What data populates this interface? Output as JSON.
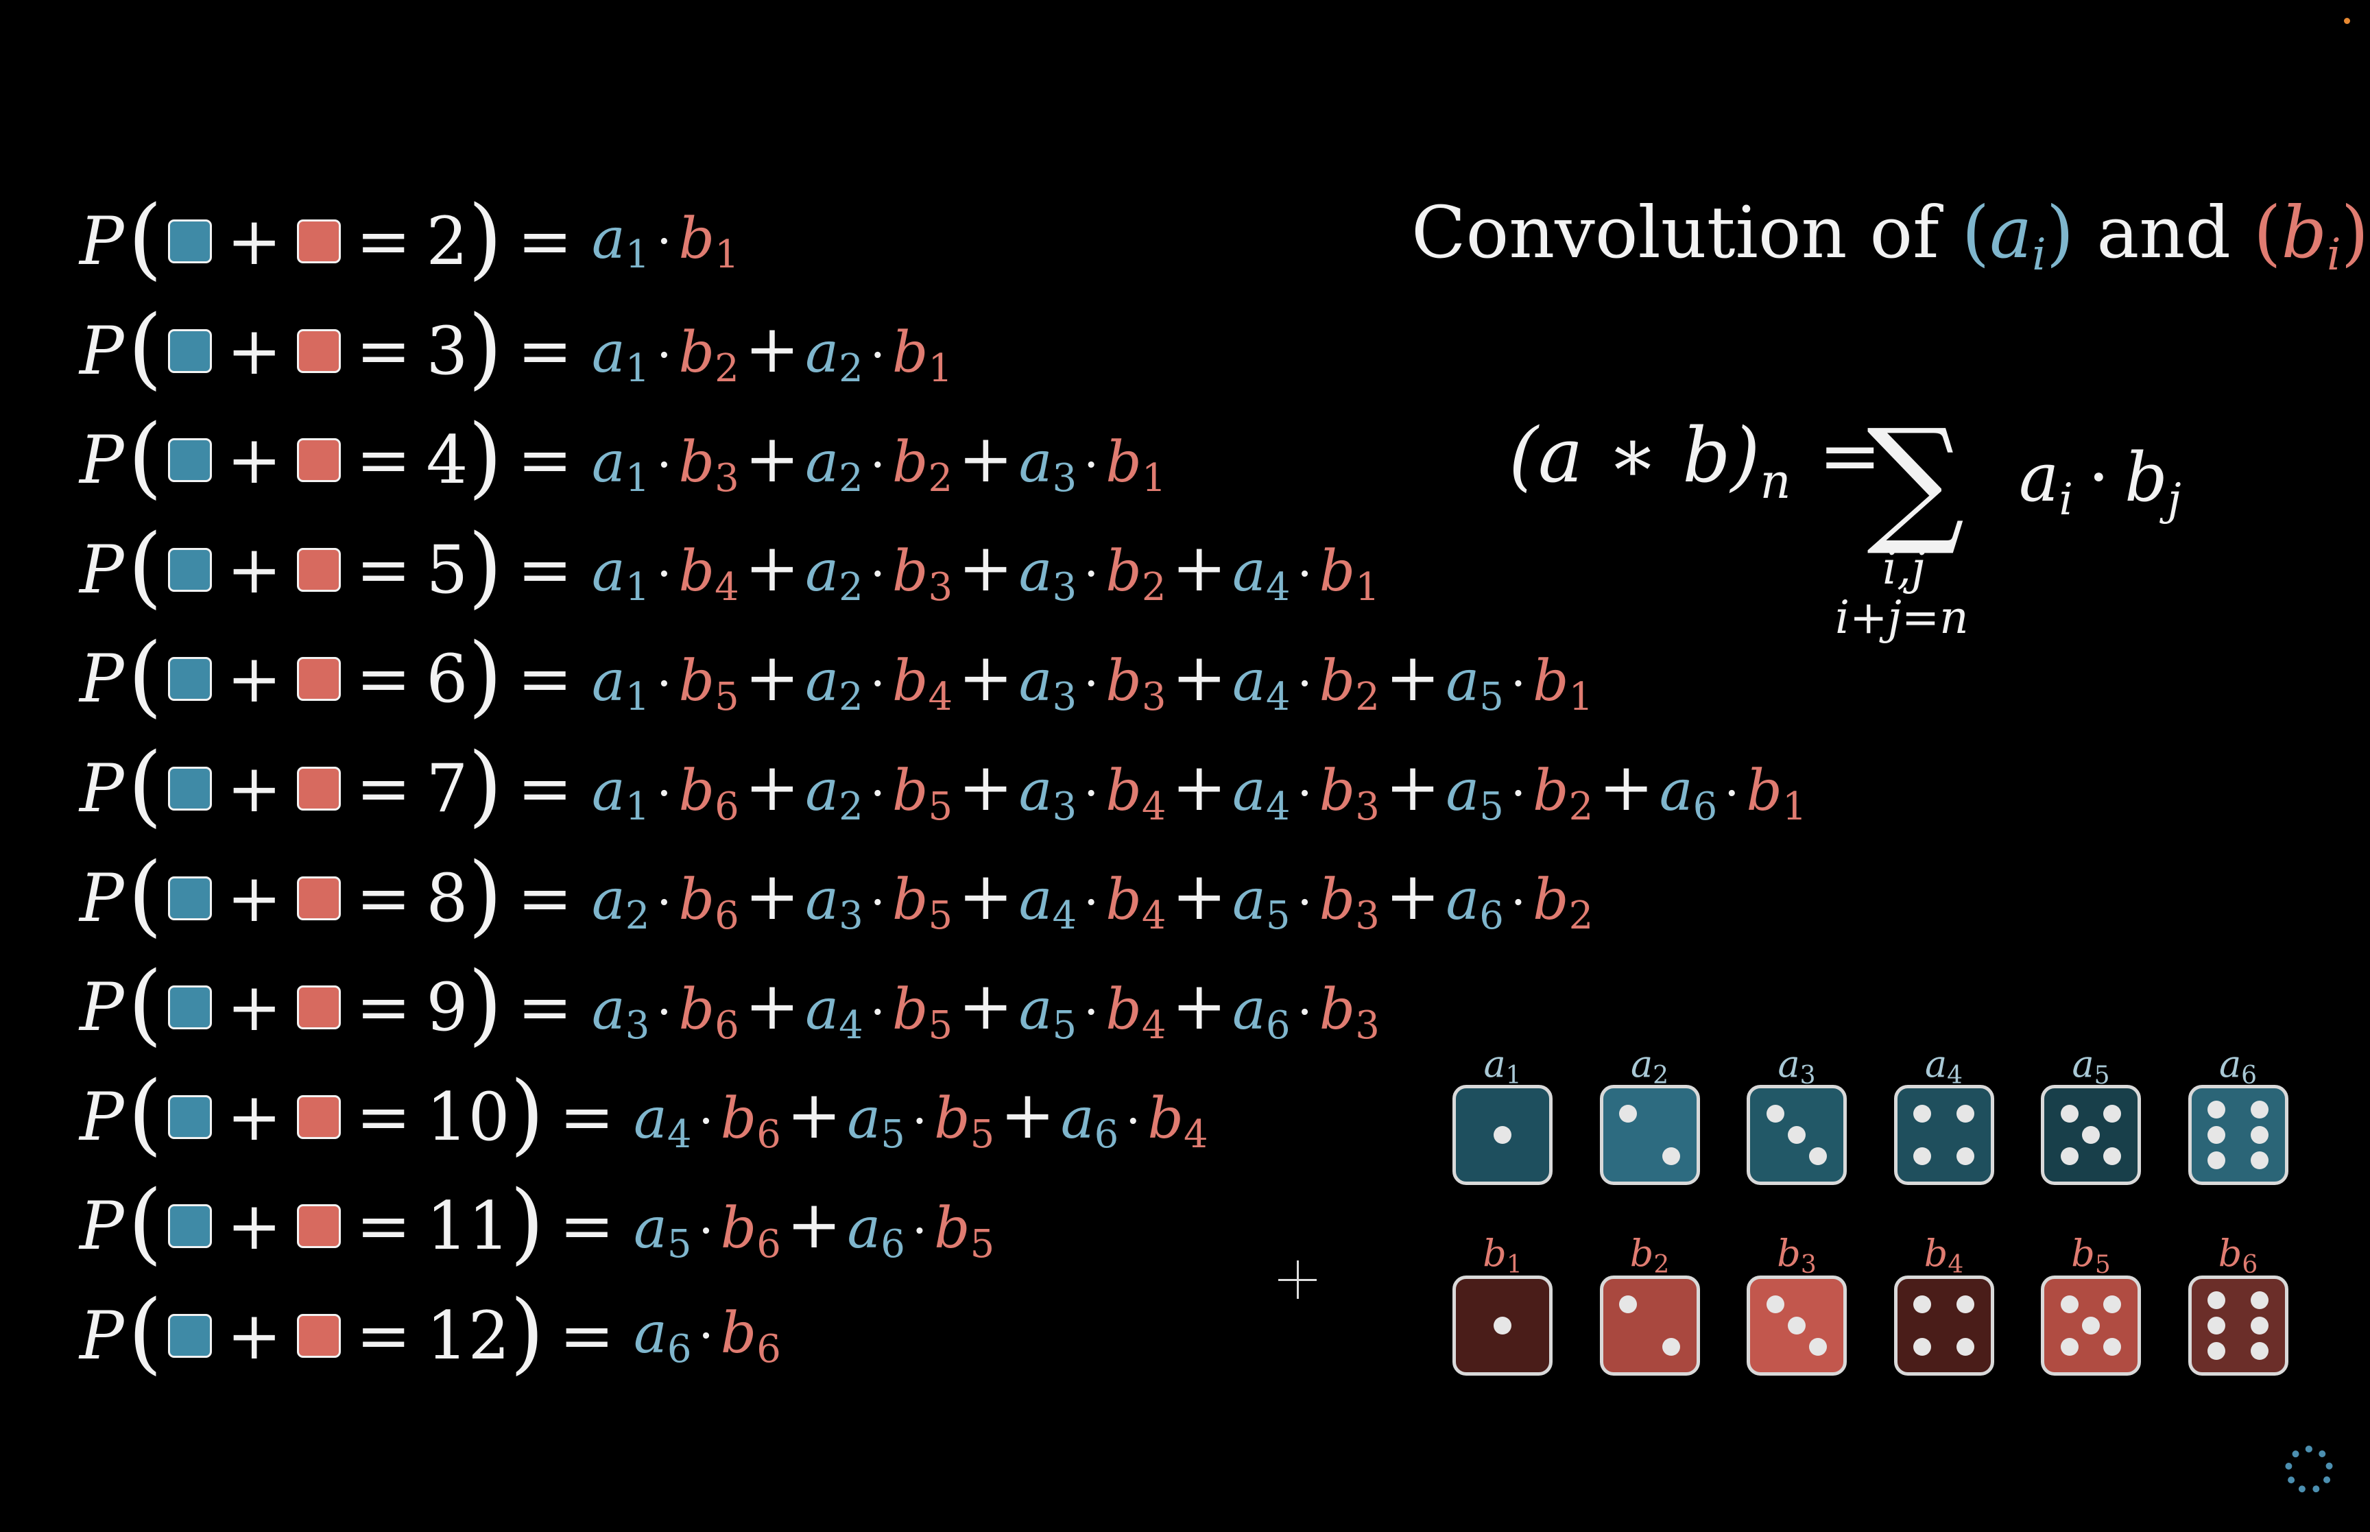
{
  "title": {
    "prefix": "Convolution of ",
    "a_open": "(",
    "a_var": "a",
    "a_sub": "i",
    "a_close": ")",
    "and": " and ",
    "b_open": "(",
    "b_var": "b",
    "b_sub": "i",
    "b_close": ")"
  },
  "formula": {
    "lhs": "(a ∗ b)",
    "lhs_sub": "n",
    "equals": "=",
    "sigma": "∑",
    "sum_index_1": "i,j",
    "sum_index_2": "i+j=n",
    "summand_a": "a",
    "summand_a_sub": "i",
    "summand_dot": "·",
    "summand_b": "b",
    "summand_b_sub": "j"
  },
  "colors": {
    "a": "#7fb6cd",
    "b": "#e07c71",
    "blue_square": "#3f8aa6",
    "red_square": "#d76a5f"
  },
  "equations": [
    {
      "sum": "2",
      "terms": [
        [
          1,
          1
        ]
      ]
    },
    {
      "sum": "3",
      "terms": [
        [
          1,
          2
        ],
        [
          2,
          1
        ]
      ]
    },
    {
      "sum": "4",
      "terms": [
        [
          1,
          3
        ],
        [
          2,
          2
        ],
        [
          3,
          1
        ]
      ]
    },
    {
      "sum": "5",
      "terms": [
        [
          1,
          4
        ],
        [
          2,
          3
        ],
        [
          3,
          2
        ],
        [
          4,
          1
        ]
      ]
    },
    {
      "sum": "6",
      "terms": [
        [
          1,
          5
        ],
        [
          2,
          4
        ],
        [
          3,
          3
        ],
        [
          4,
          2
        ],
        [
          5,
          1
        ]
      ]
    },
    {
      "sum": "7",
      "terms": [
        [
          1,
          6
        ],
        [
          2,
          5
        ],
        [
          3,
          4
        ],
        [
          4,
          3
        ],
        [
          5,
          2
        ],
        [
          6,
          1
        ]
      ]
    },
    {
      "sum": "8",
      "terms": [
        [
          2,
          6
        ],
        [
          3,
          5
        ],
        [
          4,
          4
        ],
        [
          5,
          3
        ],
        [
          6,
          2
        ]
      ]
    },
    {
      "sum": "9",
      "terms": [
        [
          3,
          6
        ],
        [
          4,
          5
        ],
        [
          5,
          4
        ],
        [
          6,
          3
        ]
      ]
    },
    {
      "sum": "10",
      "terms": [
        [
          4,
          6
        ],
        [
          5,
          5
        ],
        [
          6,
          4
        ]
      ]
    },
    {
      "sum": "11",
      "terms": [
        [
          5,
          6
        ],
        [
          6,
          5
        ]
      ]
    },
    {
      "sum": "12",
      "terms": [
        [
          6,
          6
        ]
      ]
    }
  ],
  "dice": {
    "a": [
      {
        "label": "a",
        "sub": "1",
        "pips": 1,
        "fill": "#1e4f5e"
      },
      {
        "label": "a",
        "sub": "2",
        "pips": 2,
        "fill": "#2d6b80"
      },
      {
        "label": "a",
        "sub": "3",
        "pips": 3,
        "fill": "#225867"
      },
      {
        "label": "a",
        "sub": "4",
        "pips": 4,
        "fill": "#1f4f5d"
      },
      {
        "label": "a",
        "sub": "5",
        "pips": 5,
        "fill": "#183f4a"
      },
      {
        "label": "a",
        "sub": "6",
        "pips": 6,
        "fill": "#2b6577"
      }
    ],
    "b": [
      {
        "label": "b",
        "sub": "1",
        "pips": 1,
        "fill": "#4a1d19"
      },
      {
        "label": "b",
        "sub": "2",
        "pips": 2,
        "fill": "#a9483f"
      },
      {
        "label": "b",
        "sub": "3",
        "pips": 3,
        "fill": "#c2574d"
      },
      {
        "label": "b",
        "sub": "4",
        "pips": 4,
        "fill": "#4a1d19"
      },
      {
        "label": "b",
        "sub": "5",
        "pips": 5,
        "fill": "#b04c42"
      },
      {
        "label": "b",
        "sub": "6",
        "pips": 6,
        "fill": "#6b2e29"
      }
    ]
  },
  "ui": {
    "P": "P",
    "equals": "=",
    "plus": "+",
    "dot": "·",
    "paren_open": "(",
    "paren_close": ")",
    "a_letter": "a",
    "b_letter": "b",
    "icons": [
      "crosshair-cursor-icon",
      "loading-spinner-icon",
      "recording-indicator-icon"
    ]
  }
}
